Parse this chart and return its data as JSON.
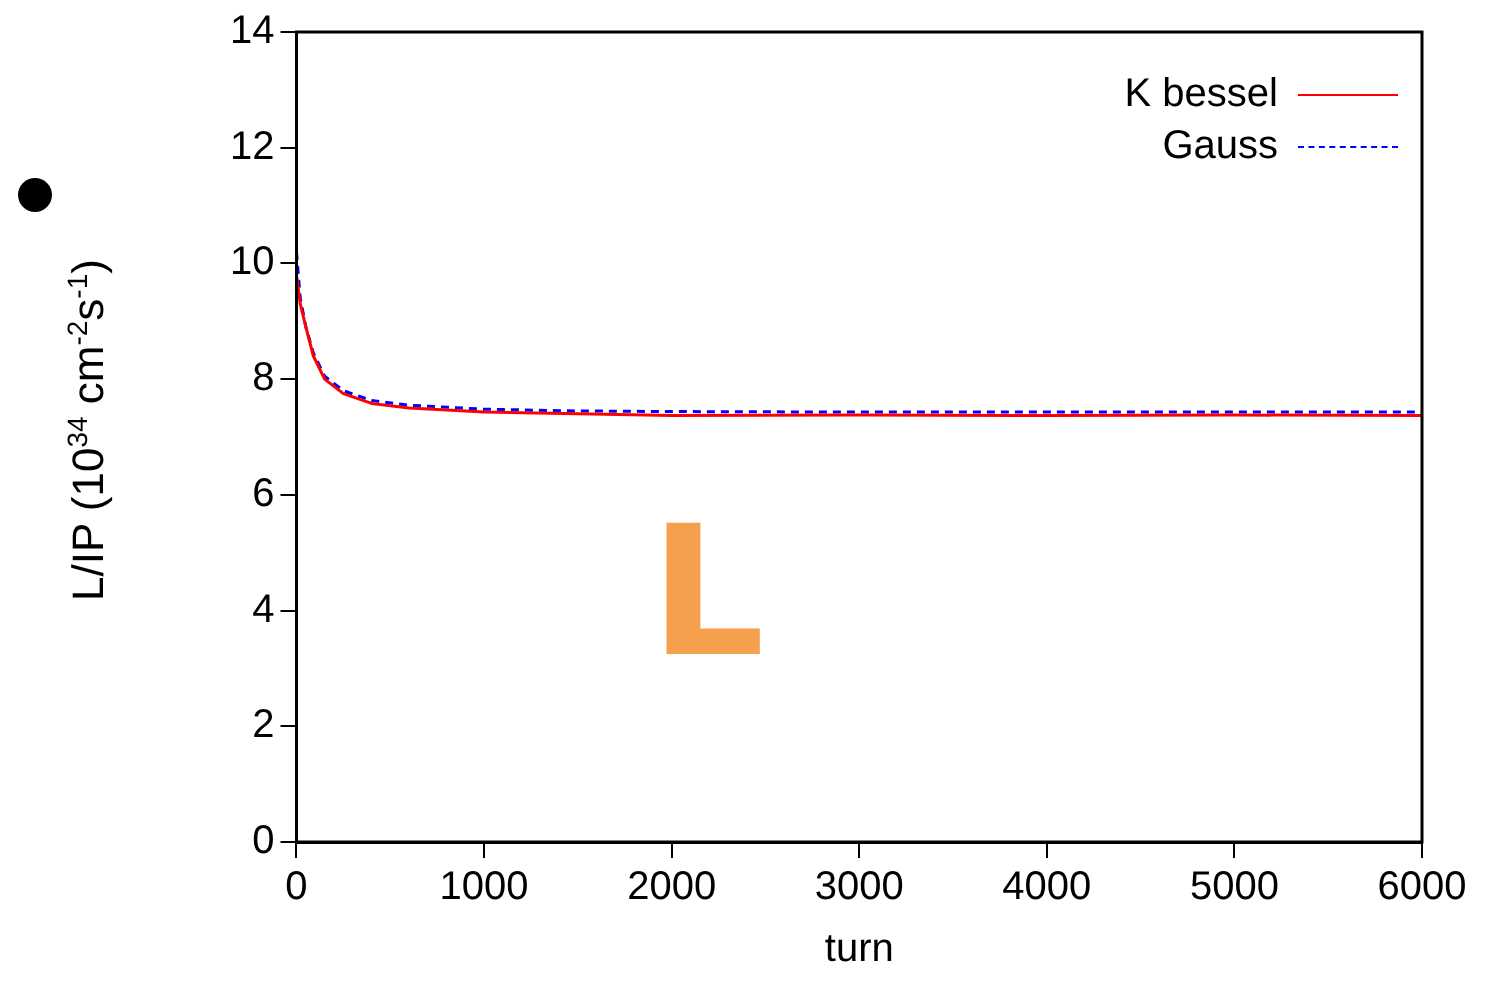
{
  "chart_data": {
    "type": "line",
    "xlabel": "turn",
    "ylabel": "L/IP (10$^{34}$ cm$^{-2}$s$^{-1}$)",
    "xlim": [
      0,
      6000
    ],
    "xticks": [
      0,
      1000,
      2000,
      3000,
      4000,
      5000,
      6000
    ],
    "ylim": [
      0,
      14
    ],
    "yticks": [
      0,
      2,
      4,
      6,
      8,
      10,
      12,
      14
    ],
    "grid": false,
    "legend": "top right",
    "marker": "none",
    "annotations": [
      "L"
    ],
    "series": [
      {
        "name": "K bessel",
        "color": "#ff0000",
        "line_style": "solid",
        "x": [
          0,
          20,
          50,
          90,
          150,
          250,
          400,
          600,
          1000,
          1500,
          2000,
          3000,
          4000,
          5000,
          6000
        ],
        "values": [
          9.8,
          9.3,
          8.9,
          8.4,
          8.0,
          7.75,
          7.58,
          7.5,
          7.43,
          7.4,
          7.37,
          7.38,
          7.37,
          7.38,
          7.37
        ]
      },
      {
        "name": "Gauss",
        "color": "#0000ff",
        "line_style": "dashed",
        "x": [
          0,
          20,
          50,
          90,
          150,
          250,
          400,
          600,
          1000,
          1500,
          2000,
          3000,
          4000,
          5000,
          6000
        ],
        "values": [
          10.2,
          9.4,
          8.9,
          8.45,
          8.05,
          7.8,
          7.63,
          7.55,
          7.48,
          7.45,
          7.44,
          7.43,
          7.43,
          7.43,
          7.43
        ]
      }
    ]
  }
}
